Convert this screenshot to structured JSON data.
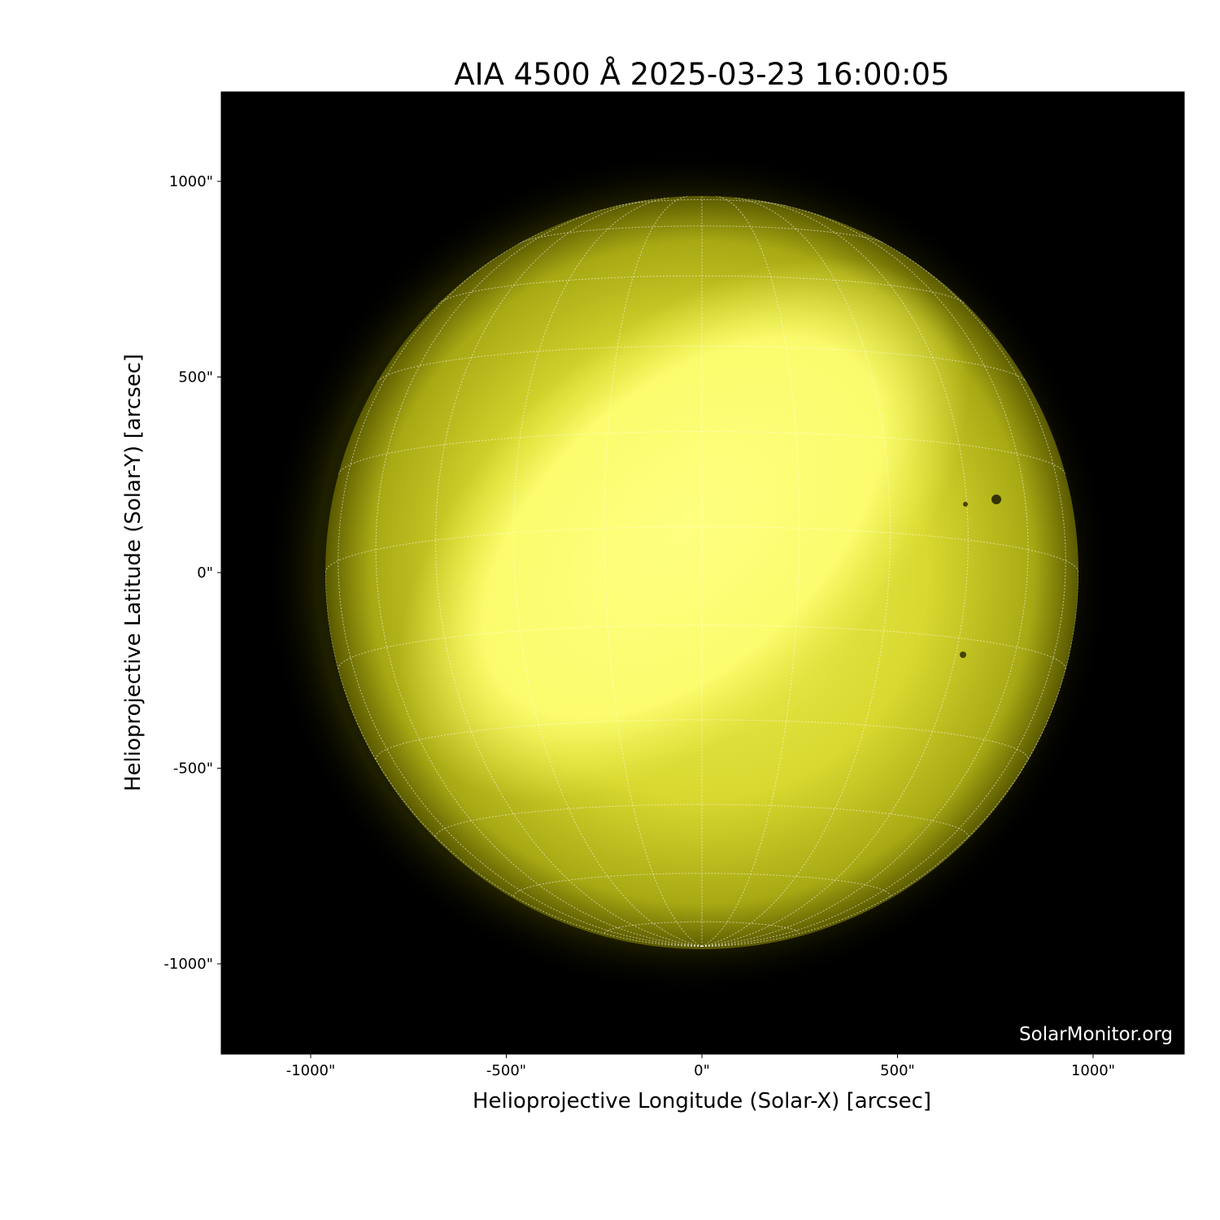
{
  "chart_data": {
    "type": "image",
    "title": "AIA 4500 Å 2025-03-23 16:00:05",
    "xlabel": "Helioprojective Longitude (Solar-X) [arcsec]",
    "ylabel": "Helioprojective Latitude (Solar-Y) [arcsec]",
    "xlim": [
      -1230,
      1230
    ],
    "ylim": [
      -1230,
      1230
    ],
    "xticks": [
      -1000,
      -500,
      0,
      500,
      1000
    ],
    "xtick_labels": [
      "-1000\"",
      "-500\"",
      "0\"",
      "500\"",
      "1000\""
    ],
    "yticks": [
      1000,
      500,
      0,
      -500,
      -1000
    ],
    "ytick_labels": [
      "1000\"",
      "500\"",
      "0\"",
      "-500\"",
      "-1000\""
    ],
    "solar_radius_arcsec": 960,
    "grid": "heliographic, dotted, 15° spacing",
    "colormap": "yellow (sdoaia4500)",
    "colors": {
      "background": "#000000",
      "disk_bright": "#ffff80",
      "disk_limb": "#5a5a00",
      "grid": "#ffffff"
    }
  },
  "watermark": "SolarMonitor.org"
}
